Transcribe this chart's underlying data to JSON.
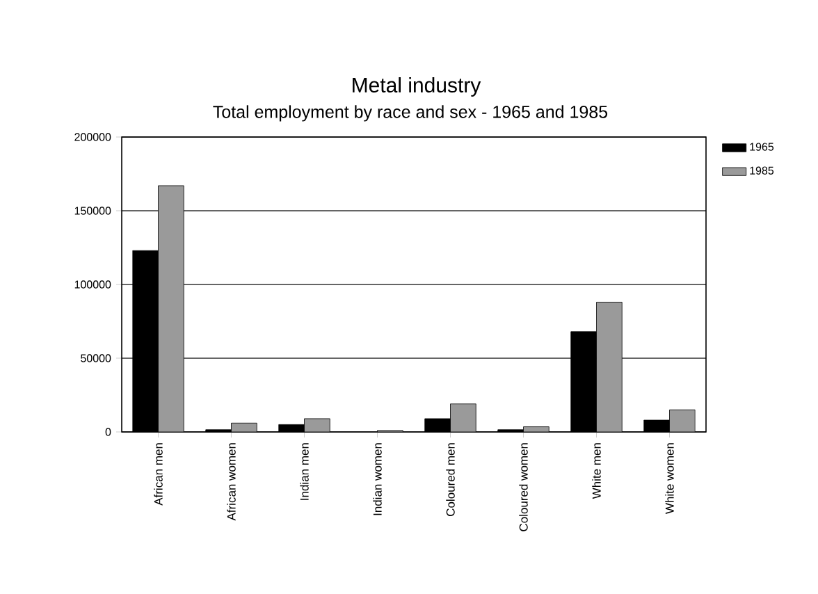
{
  "chart_data": {
    "type": "bar",
    "title": "Metal industry",
    "subtitle": "Total employment by race and sex - 1965 and 1985",
    "categories": [
      "African men",
      "African women",
      "Indian men",
      "Indian women",
      "Coloured men",
      "Coloured women",
      "White men",
      "White women"
    ],
    "series": [
      {
        "name": "1965",
        "color": "#000000",
        "values": [
          123000,
          1500,
          5000,
          null,
          9000,
          1500,
          68000,
          8000
        ]
      },
      {
        "name": "1985",
        "color": "#9a9a9a",
        "values": [
          167000,
          6000,
          9000,
          1000,
          19000,
          3500,
          88000,
          15000
        ]
      }
    ],
    "ylim": [
      0,
      200000
    ],
    "yticks": [
      0,
      50000,
      100000,
      150000,
      200000
    ],
    "grid": "y",
    "legend": "top right"
  }
}
